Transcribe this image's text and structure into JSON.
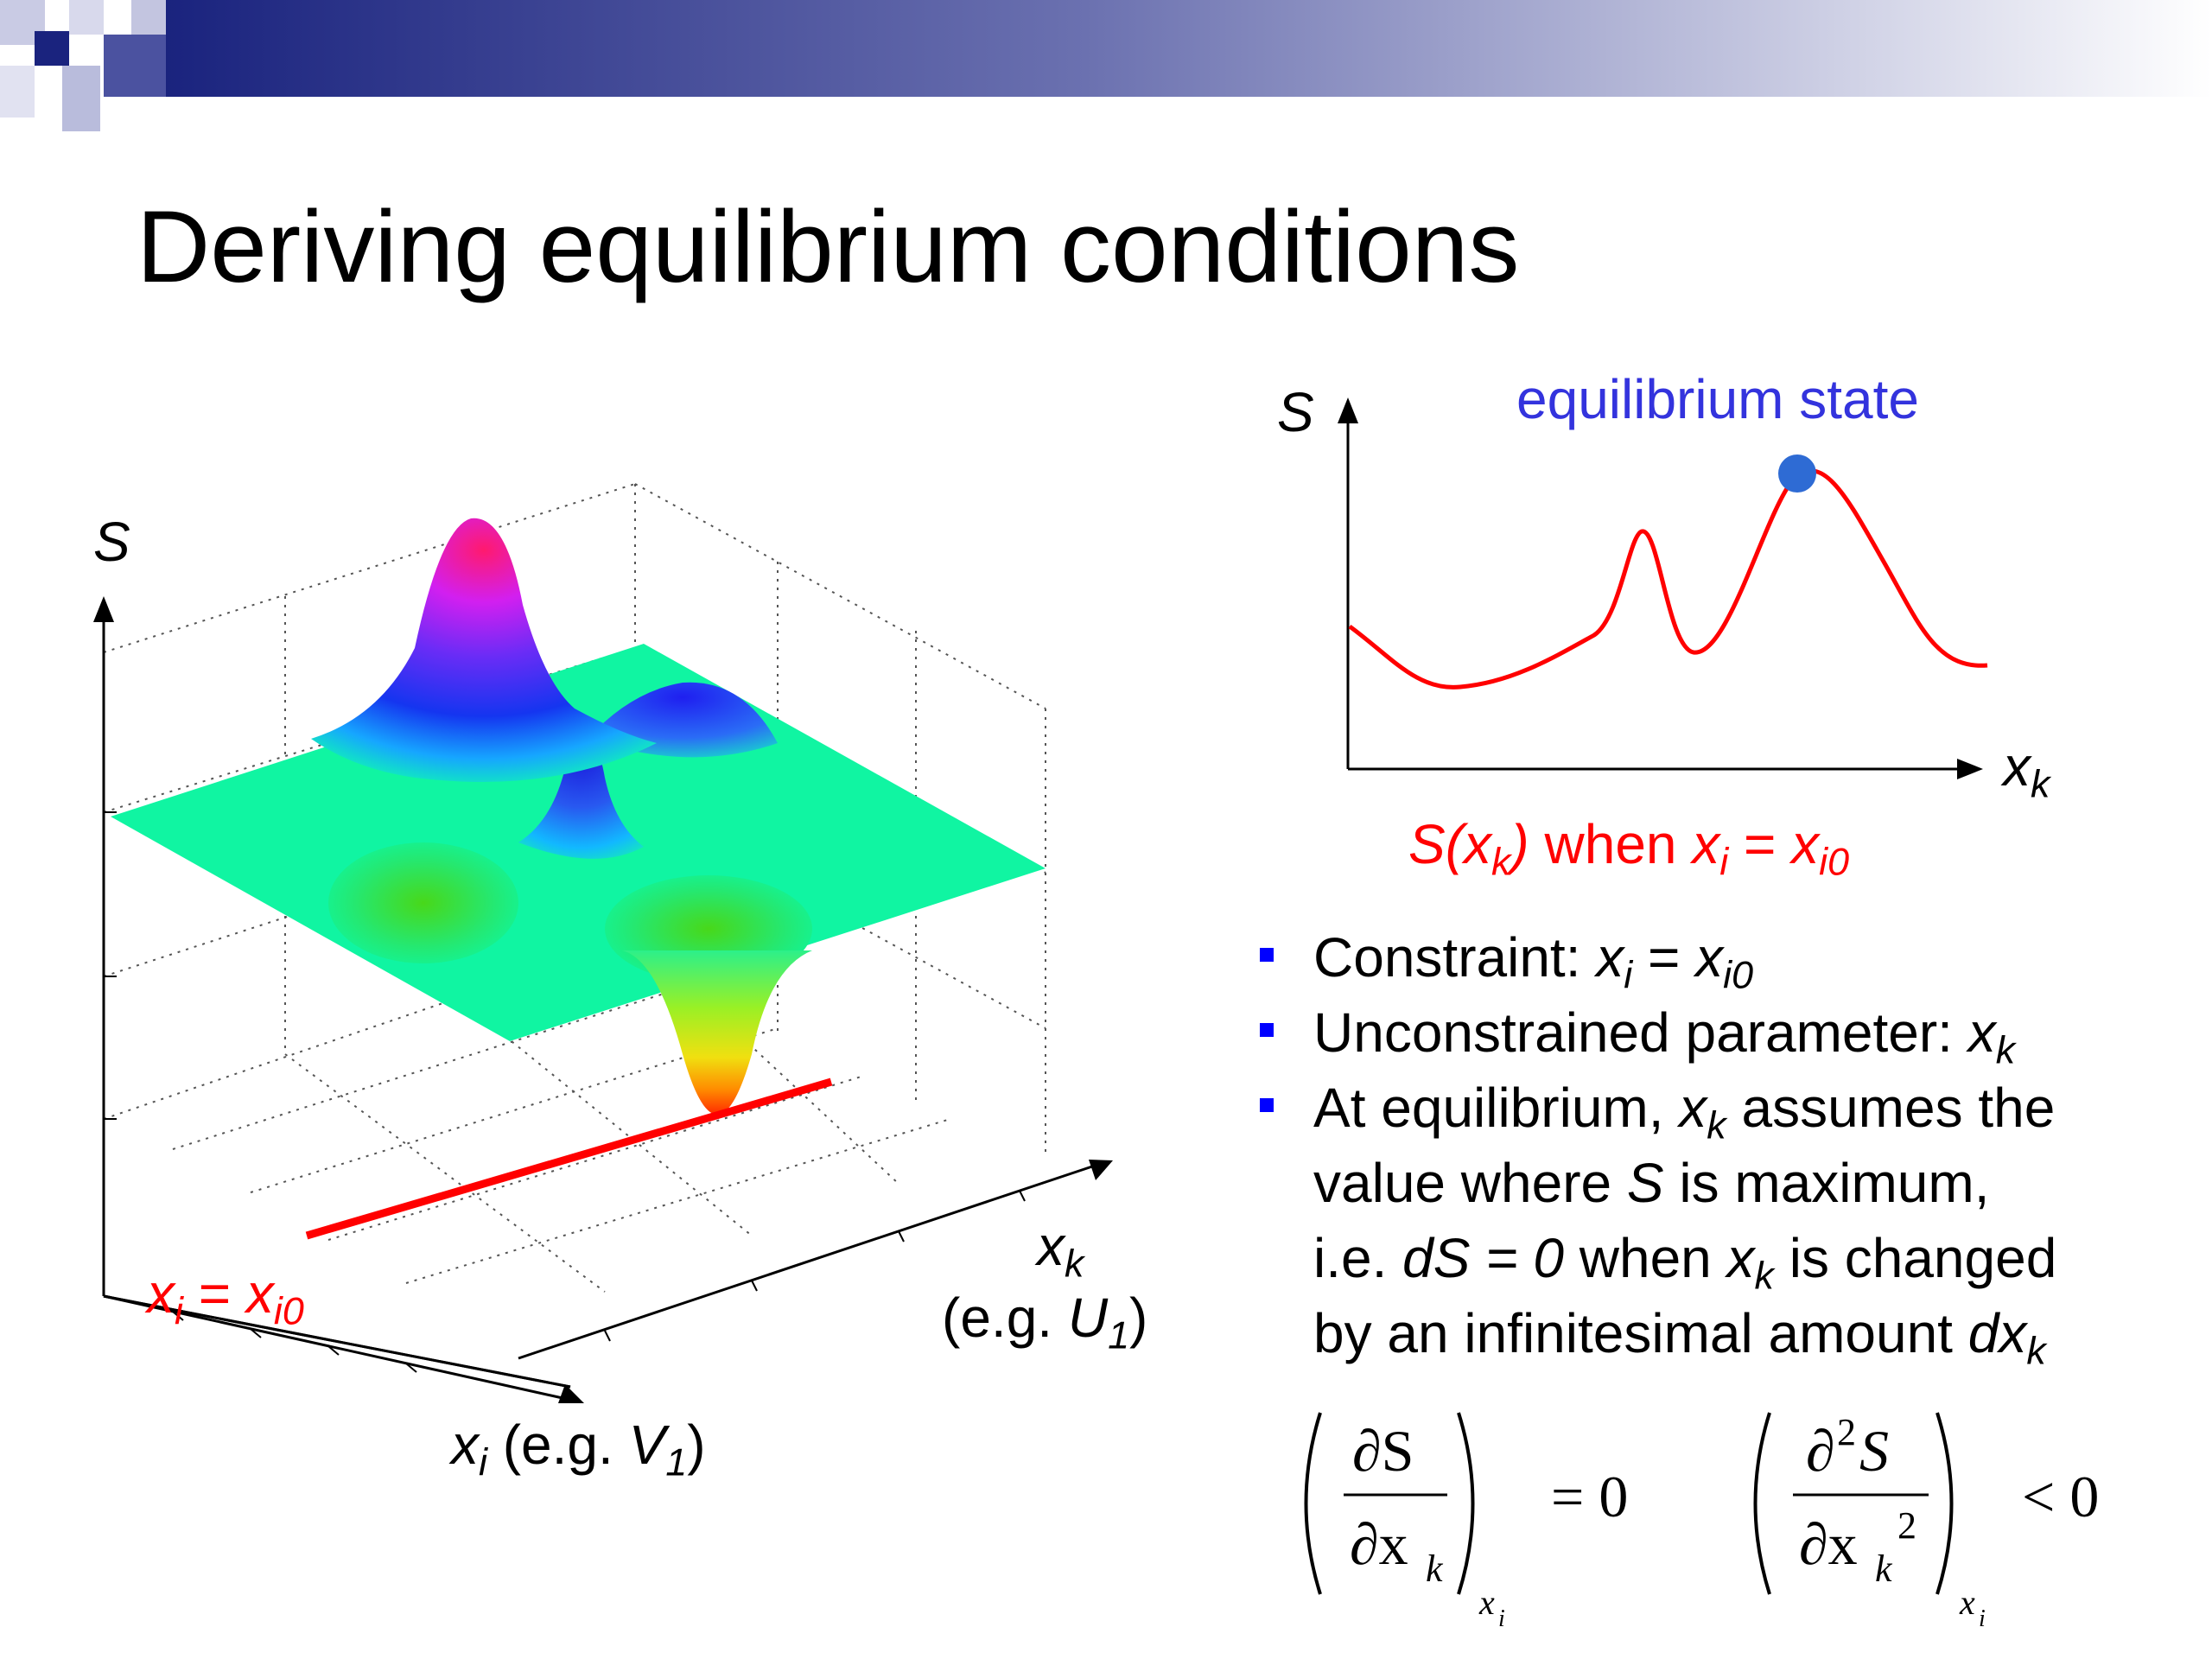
{
  "slide": {
    "title": "Deriving equilibrium conditions",
    "accent_color": "#1a237e",
    "surface_plot": {
      "axis_vertical": "S",
      "axis_k": "x",
      "axis_k_sub": "k",
      "axis_k_example_prefix": "(e.g. ",
      "axis_k_example_var": "U",
      "axis_k_example_sub": "1",
      "axis_k_example_suffix": ")",
      "axis_i": "x",
      "axis_i_sub": "i",
      "axis_i_example_prefix": " (e.g. ",
      "axis_i_example_var": "V",
      "axis_i_example_sub": "1",
      "axis_i_example_suffix": ")",
      "constraint_lhs": "x",
      "constraint_lhs_sub": "i",
      "constraint_eq": " = ",
      "constraint_rhs": "x",
      "constraint_rhs_sub": "i0",
      "constraint_color": "#ff0000"
    },
    "profile_plot": {
      "axis_y": "S",
      "axis_x": "x",
      "axis_x_sub": "k",
      "marker_label": "equilibrium state",
      "marker_color": "#2e6bd4",
      "label_color": "#3333dd",
      "curve_color": "#ff0000",
      "caption": {
        "s": "S(x",
        "s_sub": "k",
        "close": ")",
        "when": " when ",
        "xi": "x",
        "xi_sub": "i",
        "eq": " = ",
        "xi0": "x",
        "xi0_sub": "i0"
      }
    },
    "bullets": [
      {
        "text": "Constraint: ",
        "var": "x",
        "sub": "i",
        "eq": " = ",
        "var2": "x",
        "sub2": "i0"
      },
      {
        "text": "Unconstrained parameter: ",
        "var": "x",
        "sub": "k"
      },
      {
        "l1a": "At equilibrium, ",
        "l1var": "x",
        "l1sub": "k",
        "l1b": " assumes the",
        "l2a": "value where ",
        "l2var": "S",
        "l2b": " is maximum,",
        "l3a": "i.e. ",
        "l3var": "dS = 0",
        "l3b": " when ",
        "l3var2": "x",
        "l3sub": "k",
        "l3c": " is changed",
        "l4a": "by an infinitesimal amount ",
        "l4var": "dx",
        "l4sub": "k"
      }
    ],
    "equations": {
      "first_num": "∂S",
      "first_den": "∂x",
      "first_den_sub": "k",
      "first_hold": "x",
      "first_hold_sub": "i",
      "first_rel": "= 0",
      "second_num": "∂",
      "second_num_sup": "2",
      "second_num_var": "S",
      "second_den": "∂x",
      "second_den_sub": "k",
      "second_den_sup": "2",
      "second_hold": "x",
      "second_hold_sub": "i",
      "second_rel": "< 0"
    }
  }
}
